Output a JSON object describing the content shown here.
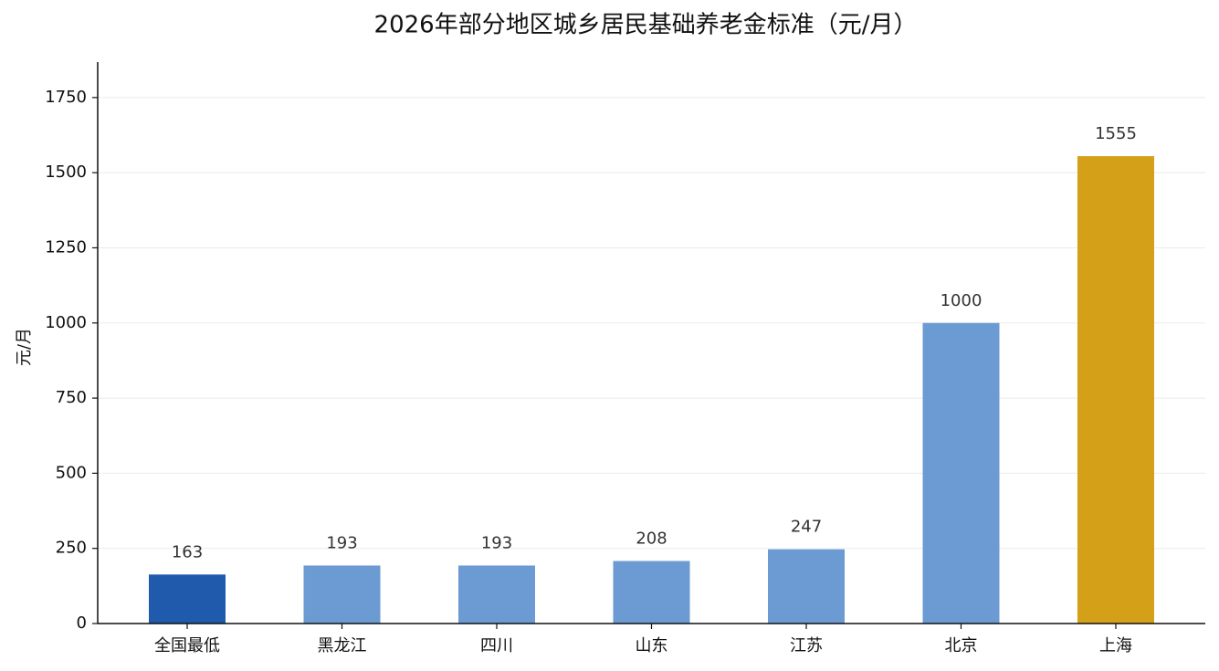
{
  "chart_data": {
    "type": "bar",
    "title": "2026年部分地区城乡居民基础养老金标准（元/月）",
    "ylabel": "元/月",
    "categories": [
      "全国最低",
      "黑龙江",
      "四川",
      "山东",
      "江苏",
      "北京",
      "上海"
    ],
    "values": [
      163,
      193,
      193,
      208,
      247,
      1000,
      1555
    ],
    "colors": [
      "#1f5aad",
      "#6b9bd2",
      "#6b9bd2",
      "#6b9bd2",
      "#6b9bd2",
      "#6b9bd2",
      "#d4a017"
    ],
    "ylim": [
      0,
      1868
    ],
    "yticks": [
      0,
      250,
      500,
      750,
      1000,
      1250,
      1500,
      1750
    ],
    "grid": true
  }
}
